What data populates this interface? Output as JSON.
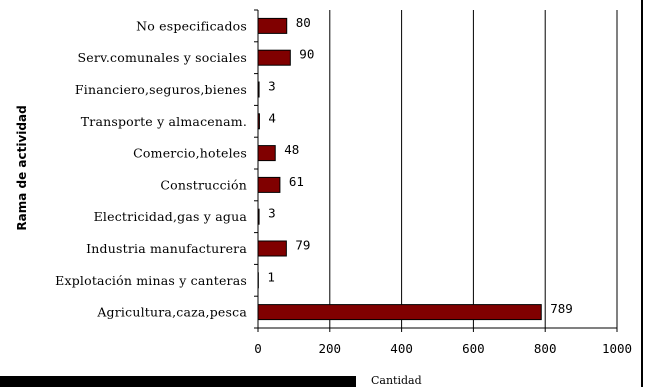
{
  "chart_data": {
    "type": "bar",
    "orientation": "horizontal",
    "categories": [
      "No especificados",
      "Serv.comunales y sociales",
      "Financiero,seguros,bienes",
      "Transporte y almacenam.",
      "Comercio,hoteles",
      "Construcción",
      "Electricidad,gas y agua",
      "Industria manufacturera",
      "Explotación minas y canteras",
      "Agricultura,caza,pesca"
    ],
    "values": [
      80,
      90,
      3,
      4,
      48,
      61,
      3,
      79,
      1,
      789
    ],
    "xlabel": "Cantidad",
    "ylabel": "Rama de actividad",
    "xlim": [
      0,
      1000
    ],
    "xticks": [
      0,
      200,
      400,
      600,
      800,
      1000
    ],
    "grid": true,
    "bar_color": "#800000",
    "legend": "none"
  }
}
